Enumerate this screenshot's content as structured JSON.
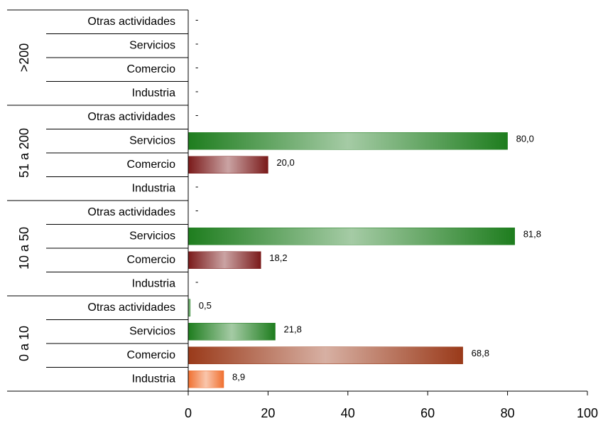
{
  "chart_data": {
    "type": "bar",
    "orientation": "horizontal",
    "groups": [
      {
        "name": ">200",
        "categories": [
          "Otras actividades",
          "Servicios",
          "Comercio",
          "Industria"
        ],
        "values": [
          null,
          null,
          null,
          null
        ],
        "value_labels": [
          "-",
          "-",
          "-",
          "-"
        ],
        "colors": [
          "#1e7d1e",
          "#1e7d1e",
          "#7a1a1a",
          "#f07030"
        ]
      },
      {
        "name": "51 a 200",
        "categories": [
          "Otras actividades",
          "Servicios",
          "Comercio",
          "Industria"
        ],
        "values": [
          null,
          80.0,
          20.0,
          null
        ],
        "value_labels": [
          "-",
          "80,0",
          "20,0",
          "-"
        ],
        "colors": [
          "#1e7d1e",
          "#1e7d1e",
          "#7a1a1a",
          "#f07030"
        ]
      },
      {
        "name": "10 a 50",
        "categories": [
          "Otras actividades",
          "Servicios",
          "Comercio",
          "Industria"
        ],
        "values": [
          null,
          81.8,
          18.2,
          null
        ],
        "value_labels": [
          "-",
          "81,8",
          "18,2",
          "-"
        ],
        "colors": [
          "#1e7d1e",
          "#1e7d1e",
          "#7a1a1a",
          "#f07030"
        ]
      },
      {
        "name": "0 a 10",
        "categories": [
          "Otras actividades",
          "Servicios",
          "Comercio",
          "Industria"
        ],
        "values": [
          0.5,
          21.8,
          68.8,
          8.9
        ],
        "value_labels": [
          "0,5",
          "21,8",
          "68,8",
          "8,9"
        ],
        "colors": [
          "#1e7d1e",
          "#1e7d1e",
          "#9a3a1a",
          "#f07030"
        ]
      }
    ],
    "xlim": [
      0,
      100
    ],
    "xticks": [
      0,
      20,
      40,
      60,
      80,
      100
    ]
  }
}
